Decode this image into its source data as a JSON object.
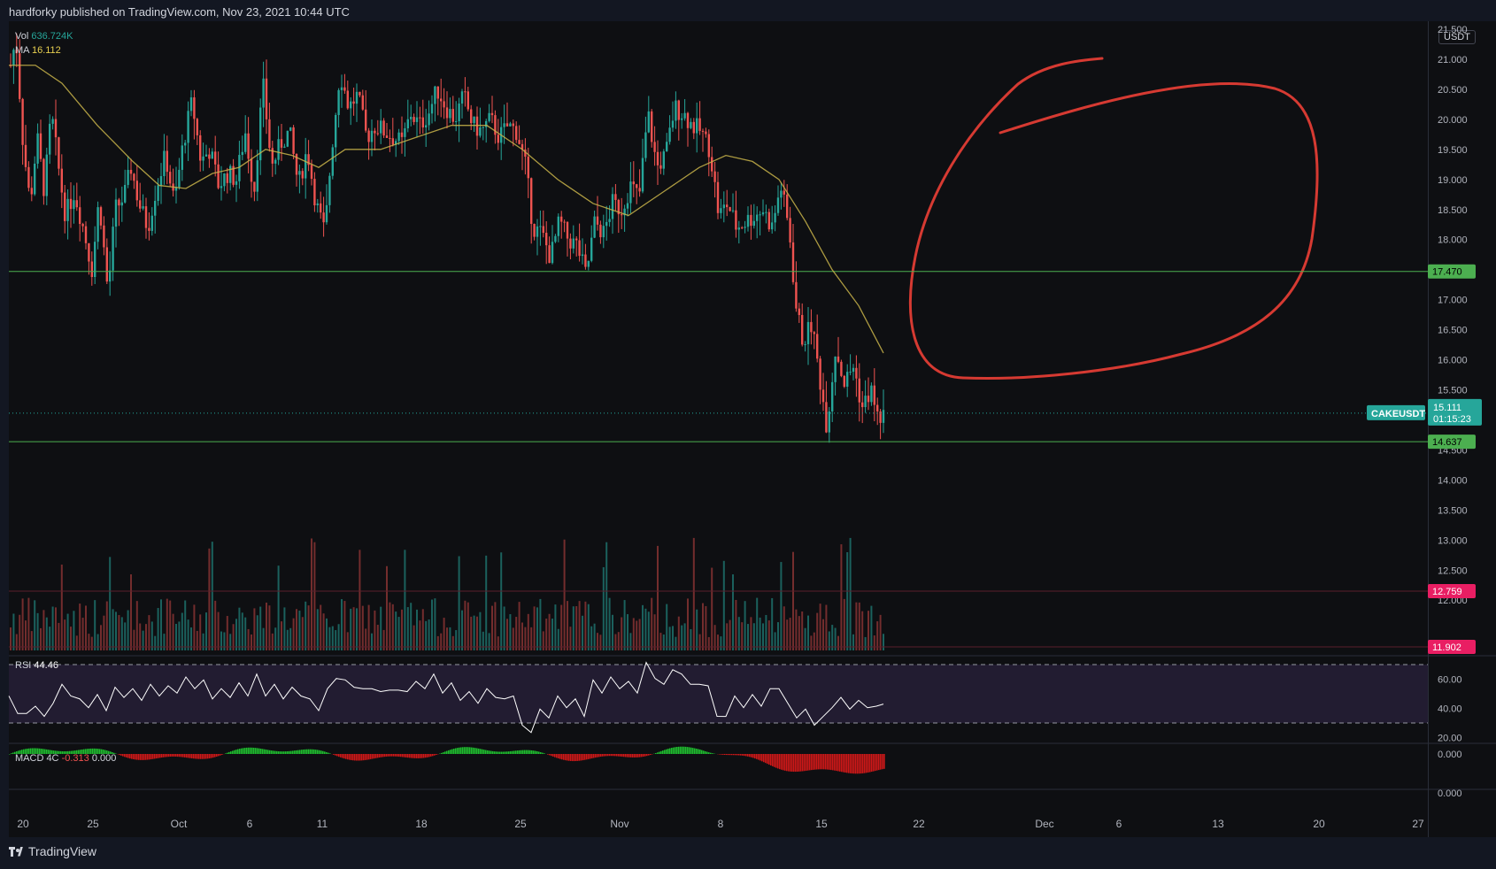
{
  "header": {
    "publish_line": "hardforky published on TradingView.com, Nov 23, 2021 10:44 UTC"
  },
  "footer": {
    "brand": "TradingView"
  },
  "price_axis": {
    "unit": "USDT"
  },
  "legend": {
    "vol_label": "Vol",
    "vol_value": "636.724K",
    "ma_label": "MA",
    "ma_value": "16.112",
    "rsi_label": "RSI",
    "rsi_value": "44.46",
    "macd_label": "MACD 4C",
    "macd_v1": "-0.313",
    "macd_v2": "0.000"
  },
  "chart_data": [
    {
      "type": "candlestick",
      "symbol": "CAKEUSDT",
      "x_axis_ticks": [
        "20",
        "25",
        "Oct",
        "6",
        "11",
        "18",
        "25",
        "Nov",
        "8",
        "15",
        "22",
        "Dec",
        "6",
        "13",
        "20",
        "27"
      ],
      "y_axis_ticks": [
        "21.500",
        "21.000",
        "20.500",
        "20.000",
        "19.500",
        "19.000",
        "18.500",
        "18.000",
        "17.500",
        "17.000",
        "16.500",
        "16.000",
        "15.500",
        "15.000",
        "14.500",
        "14.000",
        "13.500",
        "13.000",
        "12.500",
        "12.000"
      ],
      "ylim": [
        11.9,
        21.5
      ],
      "last_price": 15.111,
      "last_price_label": "15.111",
      "countdown": "01:15:23",
      "horizontal_lines": [
        {
          "value": 17.47,
          "label": "17.470",
          "color": "#4caf50"
        },
        {
          "value": 14.637,
          "label": "14.637",
          "color": "#4caf50"
        }
      ],
      "volume_levels": [
        {
          "label": "12.759",
          "color": "#e91e63"
        },
        {
          "label": "11.902",
          "color": "#e91e63"
        }
      ],
      "price_path": [
        [
          0,
          20.9
        ],
        [
          6,
          21.35
        ],
        [
          14,
          19.6
        ],
        [
          22,
          18.6
        ],
        [
          30,
          19.7
        ],
        [
          38,
          18.8
        ],
        [
          46,
          20.1
        ],
        [
          54,
          19.2
        ],
        [
          62,
          18.4
        ],
        [
          72,
          18.8
        ],
        [
          82,
          18.2
        ],
        [
          92,
          17.5
        ],
        [
          100,
          18.7
        ],
        [
          110,
          17.1
        ],
        [
          118,
          18.5
        ],
        [
          128,
          18.7
        ],
        [
          136,
          19.2
        ],
        [
          145,
          18.6
        ],
        [
          155,
          18.2
        ],
        [
          165,
          18.9
        ],
        [
          175,
          19.4
        ],
        [
          185,
          18.6
        ],
        [
          195,
          19.6
        ],
        [
          205,
          20.3
        ],
        [
          215,
          19.3
        ],
        [
          225,
          19.5
        ],
        [
          235,
          18.9
        ],
        [
          245,
          19.1
        ],
        [
          255,
          19.0
        ],
        [
          265,
          19.8
        ],
        [
          275,
          18.8
        ],
        [
          285,
          20.6
        ],
        [
          295,
          19.2
        ],
        [
          305,
          19.6
        ],
        [
          315,
          19.8
        ],
        [
          325,
          18.9
        ],
        [
          335,
          19.5
        ],
        [
          345,
          18.6
        ],
        [
          355,
          18.1
        ],
        [
          362,
          19.4
        ],
        [
          372,
          20.8
        ],
        [
          382,
          20.2
        ],
        [
          392,
          20.4
        ],
        [
          402,
          19.7
        ],
        [
          412,
          19.9
        ],
        [
          422,
          19.8
        ],
        [
          432,
          19.7
        ],
        [
          442,
          19.6
        ],
        [
          452,
          20.1
        ],
        [
          462,
          19.9
        ],
        [
          472,
          20.1
        ],
        [
          482,
          20.5
        ],
        [
          492,
          20.2
        ],
        [
          502,
          20.0
        ],
        [
          512,
          20.4
        ],
        [
          522,
          19.9
        ],
        [
          532,
          19.8
        ],
        [
          542,
          20.0
        ],
        [
          552,
          19.7
        ],
        [
          562,
          19.9
        ],
        [
          572,
          19.8
        ],
        [
          582,
          19.2
        ],
        [
          590,
          18.2
        ],
        [
          600,
          18.1
        ],
        [
          610,
          17.7
        ],
        [
          620,
          18.3
        ],
        [
          630,
          18.0
        ],
        [
          640,
          17.9
        ],
        [
          650,
          17.4
        ],
        [
          660,
          18.3
        ],
        [
          670,
          18.1
        ],
        [
          680,
          18.6
        ],
        [
          690,
          18.5
        ],
        [
          700,
          18.9
        ],
        [
          710,
          18.7
        ],
        [
          720,
          20.1
        ],
        [
          730,
          19.2
        ],
        [
          740,
          19.4
        ],
        [
          750,
          20.2
        ],
        [
          760,
          20.1
        ],
        [
          770,
          19.9
        ],
        [
          780,
          19.8
        ],
        [
          790,
          19.5
        ],
        [
          800,
          18.4
        ],
        [
          810,
          18.6
        ],
        [
          820,
          18.2
        ],
        [
          830,
          18.3
        ],
        [
          840,
          18.4
        ],
        [
          850,
          18.5
        ],
        [
          860,
          18.2
        ],
        [
          870,
          18.9
        ],
        [
          880,
          18.1
        ],
        [
          887,
          16.9
        ],
        [
          895,
          16.3
        ],
        [
          905,
          16.6
        ],
        [
          915,
          15.6
        ],
        [
          922,
          14.9
        ],
        [
          932,
          16.2
        ],
        [
          942,
          15.6
        ],
        [
          952,
          15.9
        ],
        [
          962,
          15.2
        ],
        [
          972,
          15.5
        ],
        [
          980,
          15.0
        ],
        [
          988,
          15.111
        ]
      ],
      "ma_path": [
        [
          0,
          20.9
        ],
        [
          30,
          20.9
        ],
        [
          60,
          20.6
        ],
        [
          100,
          19.9
        ],
        [
          140,
          19.3
        ],
        [
          170,
          18.9
        ],
        [
          200,
          18.85
        ],
        [
          230,
          19.1
        ],
        [
          260,
          19.2
        ],
        [
          290,
          19.5
        ],
        [
          320,
          19.4
        ],
        [
          350,
          19.2
        ],
        [
          380,
          19.5
        ],
        [
          420,
          19.5
        ],
        [
          460,
          19.7
        ],
        [
          500,
          19.9
        ],
        [
          540,
          19.9
        ],
        [
          580,
          19.5
        ],
        [
          620,
          19.0
        ],
        [
          660,
          18.6
        ],
        [
          700,
          18.4
        ],
        [
          740,
          18.8
        ],
        [
          780,
          19.2
        ],
        [
          810,
          19.4
        ],
        [
          840,
          19.3
        ],
        [
          870,
          19.0
        ],
        [
          900,
          18.3
        ],
        [
          930,
          17.5
        ],
        [
          960,
          16.9
        ],
        [
          988,
          16.112
        ]
      ]
    },
    {
      "type": "line",
      "name": "RSI",
      "y_axis_ticks": [
        "60.00",
        "40.00",
        "20.00"
      ],
      "ylim": [
        20,
        70
      ],
      "bands": [
        70,
        30
      ],
      "values": [
        [
          0,
          47
        ],
        [
          10,
          38
        ],
        [
          20,
          35
        ],
        [
          30,
          43
        ],
        [
          40,
          33
        ],
        [
          50,
          45
        ],
        [
          60,
          55
        ],
        [
          70,
          50
        ],
        [
          80,
          45
        ],
        [
          90,
          42
        ],
        [
          100,
          48
        ],
        [
          110,
          40
        ],
        [
          120,
          53
        ],
        [
          130,
          49
        ],
        [
          140,
          52
        ],
        [
          150,
          47
        ],
        [
          160,
          55
        ],
        [
          170,
          50
        ],
        [
          180,
          54
        ],
        [
          190,
          52
        ],
        [
          200,
          60
        ],
        [
          210,
          55
        ],
        [
          220,
          58
        ],
        [
          230,
          48
        ],
        [
          240,
          52
        ],
        [
          250,
          49
        ],
        [
          260,
          56
        ],
        [
          270,
          50
        ],
        [
          280,
          62
        ],
        [
          290,
          50
        ],
        [
          300,
          55
        ],
        [
          310,
          48
        ],
        [
          320,
          53
        ],
        [
          330,
          50
        ],
        [
          340,
          45
        ],
        [
          350,
          40
        ],
        [
          360,
          52
        ],
        [
          370,
          62
        ],
        [
          380,
          58
        ],
        [
          390,
          56
        ],
        [
          400,
          52
        ],
        [
          410,
          55
        ],
        [
          420,
          50
        ],
        [
          430,
          54
        ],
        [
          440,
          51
        ],
        [
          450,
          53
        ],
        [
          460,
          57
        ],
        [
          470,
          55
        ],
        [
          480,
          62
        ],
        [
          490,
          52
        ],
        [
          500,
          56
        ],
        [
          510,
          47
        ],
        [
          520,
          50
        ],
        [
          530,
          45
        ],
        [
          540,
          52
        ],
        [
          550,
          49
        ],
        [
          560,
          45
        ],
        [
          570,
          50
        ],
        [
          580,
          27
        ],
        [
          590,
          25
        ],
        [
          600,
          38
        ],
        [
          610,
          35
        ],
        [
          620,
          47
        ],
        [
          630,
          42
        ],
        [
          640,
          45
        ],
        [
          650,
          36
        ],
        [
          660,
          58
        ],
        [
          670,
          52
        ],
        [
          680,
          60
        ],
        [
          690,
          55
        ],
        [
          700,
          57
        ],
        [
          710,
          52
        ],
        [
          720,
          70
        ],
        [
          730,
          62
        ],
        [
          740,
          55
        ],
        [
          750,
          68
        ],
        [
          760,
          62
        ],
        [
          770,
          58
        ],
        [
          780,
          55
        ],
        [
          790,
          57
        ],
        [
          800,
          33
        ],
        [
          810,
          36
        ],
        [
          820,
          47
        ],
        [
          830,
          42
        ],
        [
          840,
          48
        ],
        [
          850,
          43
        ],
        [
          860,
          52
        ],
        [
          870,
          55
        ],
        [
          880,
          42
        ],
        [
          890,
          35
        ],
        [
          900,
          38
        ],
        [
          910,
          30
        ],
        [
          920,
          33
        ],
        [
          930,
          42
        ],
        [
          940,
          46
        ],
        [
          950,
          41
        ],
        [
          960,
          44
        ],
        [
          970,
          42
        ],
        [
          980,
          40
        ],
        [
          988,
          44.46
        ]
      ]
    },
    {
      "type": "bar",
      "name": "MACD 4C",
      "y_axis_ticks": [
        "0.000",
        "0.000"
      ]
    }
  ]
}
